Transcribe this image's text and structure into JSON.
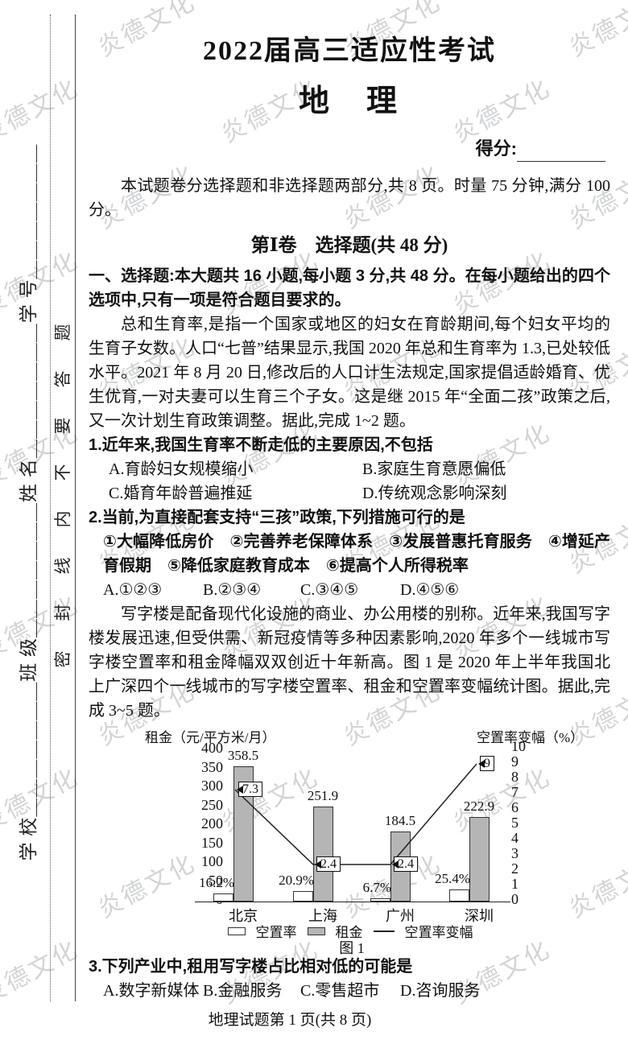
{
  "watermark": {
    "text": "炎德文化"
  },
  "sidebar": {
    "fields_line": "学 校＿＿＿＿＿＿＿班 级＿＿＿＿＿＿＿姓 名＿＿＿＿＿＿＿学 号＿＿＿＿＿＿＿",
    "seal_line": "密　封　线　内　不　要　答　题"
  },
  "header": {
    "exam_title": "2022届高三适应性考试",
    "subject": "地　理",
    "score_label": "得分:"
  },
  "intro": "本试题卷分选择题和非选择题两部分,共 8 页。时量 75 分钟,满分 100 分。",
  "part1": {
    "title": "第Ⅰ卷　选择题(共 48 分)",
    "directive": "一、选择题:本大题共 16 小题,每小题 3 分,共 48 分。在每小题给出的四个选项中,只有一项是符合题目要求的。"
  },
  "passage1": "总和生育率,是指一个国家或地区的妇女在育龄期间,每个妇女平均的生育子女数。人口“七普”结果显示,我国 2020 年总和生育率为 1.3,已处较低水平。2021 年 8 月 20 日,修改后的人口计生法规定,国家提倡适龄婚育、优生优育,一对夫妻可以生育三个子女。这是继 2015 年“全面二孩”政策之后,又一次计划生育政策调整。据此,完成 1~2 题。",
  "q1": {
    "stem": "1.近年来,我国生育率不断走低的主要原因,不包括",
    "options": [
      "A.育龄妇女规模缩小",
      "B.家庭生育意愿偏低",
      "C.婚育年龄普遍推延",
      "D.传统观念影响深刻"
    ]
  },
  "q2": {
    "stem": "2.当前,为直接配套支持“三孩”政策,下列措施可行的是",
    "items": "①大幅降低房价　②完善养老保障体系　③发展普惠托育服务　④增延产育假期　⑤降低家庭教育成本　⑥提高个人所得税率",
    "options": [
      "A.①②③",
      "B.②③④",
      "C.③④⑤",
      "D.④⑤⑥"
    ]
  },
  "passage2": "写字楼是配备现代化设施的商业、办公用楼的别称。近年来,我国写字楼发展迅速,但受供需、新冠疫情等多种因素影响,2020 年多个一线城市写字楼空置率和租金降幅双双创近十年新高。图 1 是 2020 年上半年我国北上广深四个一线城市的写字楼空置率、租金和空置率变幅统计图。据此,完成 3~5 题。",
  "chart_data": {
    "type": "bar",
    "subtype": "bar+line combo",
    "caption": "图 1",
    "categories": [
      "北京",
      "上海",
      "广州",
      "深圳"
    ],
    "series": [
      {
        "name": "空置率",
        "type": "bar",
        "unit": "%",
        "values": [
          16.2,
          20.9,
          6.7,
          25.4
        ]
      },
      {
        "name": "租金",
        "type": "bar",
        "unit": "元/平方米/月",
        "values": [
          358.5,
          251.9,
          184.5,
          222.9
        ]
      },
      {
        "name": "空置率变幅",
        "type": "line",
        "unit": "%",
        "values": [
          7.3,
          2.4,
          2.4,
          9
        ]
      }
    ],
    "left_axis": {
      "label": "租金（元/平方米/月）",
      "min": 0,
      "max": 400,
      "step": 50
    },
    "right_axis": {
      "label": "空置率变幅（%）",
      "min": 0,
      "max": 10,
      "step": 1
    },
    "legend": [
      "空置率",
      "租金",
      "空置率变幅"
    ],
    "legend_position": "bottom",
    "grid": false
  },
  "q3": {
    "stem": "3.下列产业中,租用写字楼占比相对低的可能是",
    "options": [
      "A.数字新媒体",
      "B.金融服务",
      "C.零售超市",
      "D.咨询服务"
    ]
  },
  "footer": "地理试题第 1 页(共 8 页)"
}
